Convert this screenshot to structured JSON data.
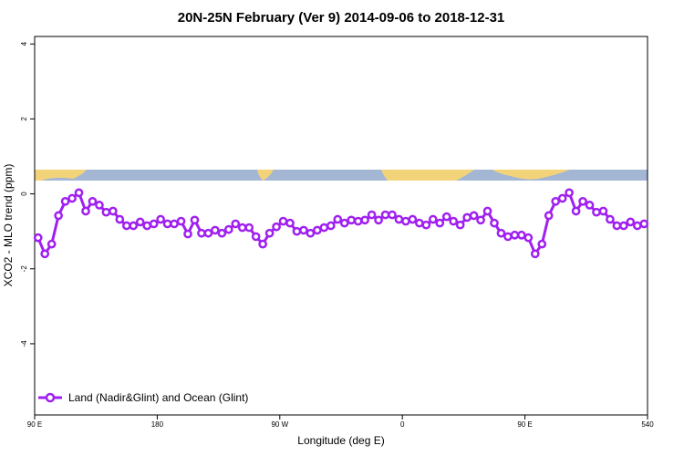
{
  "chart_data": {
    "type": "line",
    "title": "20N-25N February (Ver 9)   2014-09-06 to 2018-12-31",
    "x_label": "Longitude (deg E)",
    "y_label": "XCO2 - MLO trend (ppm)",
    "x": [
      92.5,
      97.5,
      102.5,
      107.5,
      112.5,
      117.5,
      122.5,
      127.5,
      132.5,
      137.5,
      142.5,
      147.5,
      152.5,
      157.5,
      162.5,
      167.5,
      172.5,
      177.5,
      182.5,
      187.5,
      192.5,
      197.5,
      202.5,
      207.5,
      212.5,
      217.5,
      222.5,
      227.5,
      232.5,
      237.5,
      242.5,
      247.5,
      252.5,
      257.5,
      262.5,
      267.5,
      272.5,
      277.5,
      282.5,
      287.5,
      292.5,
      297.5,
      302.5,
      307.5,
      312.5,
      317.5,
      322.5,
      327.5,
      332.5,
      337.5,
      342.5,
      347.5,
      352.5,
      357.5,
      362.5,
      367.5,
      372.5,
      377.5,
      382.5,
      387.5,
      392.5,
      397.5,
      402.5,
      407.5,
      412.5,
      417.5,
      422.5,
      427.5,
      432.5,
      437.5,
      442.5,
      447.5,
      452.5,
      457.5,
      462.5,
      467.5,
      472.5,
      477.5,
      482.5,
      487.5,
      492.5,
      497.5,
      502.5,
      507.5,
      512.5,
      517.5,
      522.5,
      527.5,
      532.5,
      537.5
    ],
    "series": [
      {
        "name": "Land (Nadir&Glint) and Ocean (Glint)",
        "color": "#a020f0",
        "values": [
          -1.17,
          -1.6,
          -1.34,
          -0.58,
          -0.2,
          -0.12,
          0.03,
          -0.46,
          -0.2,
          -0.3,
          -0.49,
          -0.46,
          -0.68,
          -0.85,
          -0.85,
          -0.75,
          -0.85,
          -0.8,
          -0.68,
          -0.8,
          -0.8,
          -0.73,
          -1.07,
          -0.7,
          -1.05,
          -1.05,
          -0.97,
          -1.05,
          -0.95,
          -0.8,
          -0.9,
          -0.9,
          -1.14,
          -1.34,
          -1.05,
          -0.88,
          -0.73,
          -0.78,
          -1.0,
          -0.97,
          -1.05,
          -0.97,
          -0.9,
          -0.85,
          -0.68,
          -0.78,
          -0.7,
          -0.73,
          -0.7,
          -0.56,
          -0.7,
          -0.56,
          -0.56,
          -0.68,
          -0.73,
          -0.68,
          -0.78,
          -0.83,
          -0.68,
          -0.78,
          -0.61,
          -0.73,
          -0.83,
          -0.63,
          -0.58,
          -0.7,
          -0.46,
          -0.78,
          -1.05,
          -1.14,
          -1.1,
          -1.1,
          -1.17,
          -1.6,
          -1.34,
          -0.58,
          -0.2,
          -0.12,
          0.03,
          -0.46,
          -0.2,
          -0.3,
          -0.49,
          -0.46,
          -0.68,
          -0.85,
          -0.85,
          -0.75,
          -0.85,
          -0.8
        ]
      }
    ],
    "xlim": [
      90,
      540
    ],
    "xticks": [
      {
        "value": 90,
        "label": "90 E"
      },
      180,
      {
        "value": 270,
        "label": "90 W"
      },
      {
        "value": 360,
        "label": "0"
      },
      {
        "value": 450,
        "label": "90 E"
      },
      540
    ],
    "ylim": [
      -5.9,
      4.2
    ],
    "yticks": [
      -4,
      -2,
      0,
      2,
      4
    ]
  }
}
